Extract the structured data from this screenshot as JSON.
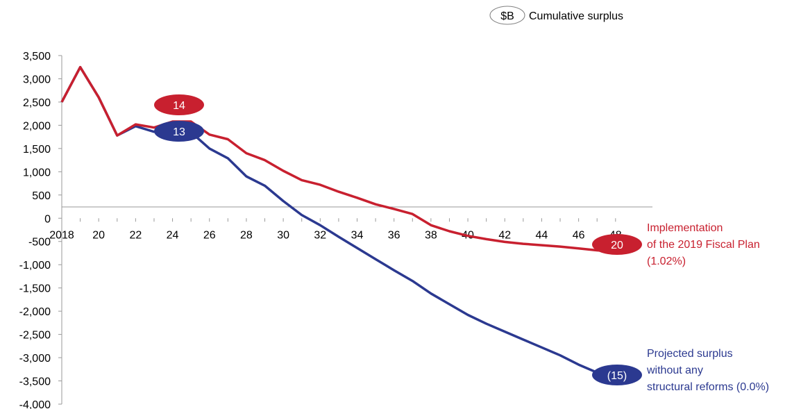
{
  "chart_data": {
    "type": "line",
    "unit_badge": "$B",
    "legend_note": "Cumulative surplus",
    "x": [
      2018,
      2019,
      2020,
      2021,
      2022,
      2023,
      2024,
      2025,
      2026,
      2027,
      2028,
      2029,
      2030,
      2031,
      2032,
      2033,
      2034,
      2035,
      2036,
      2037,
      2038,
      2039,
      2040,
      2041,
      2042,
      2043,
      2044,
      2045,
      2046,
      2047,
      2048
    ],
    "x_ticks": [
      2018,
      2020,
      2022,
      2024,
      2026,
      2028,
      2030,
      2032,
      2034,
      2036,
      2038,
      2040,
      2042,
      2044,
      2046,
      2048
    ],
    "x_tick_labels": [
      "2018",
      "20",
      "22",
      "24",
      "26",
      "28",
      "30",
      "32",
      "34",
      "36",
      "38",
      "40",
      "42",
      "44",
      "46",
      "48"
    ],
    "xlim": [
      2018,
      2050
    ],
    "ylim": [
      -4000,
      3500
    ],
    "y_ticks": [
      3500,
      3000,
      2500,
      2000,
      1500,
      1000,
      500,
      0,
      -500,
      -1000,
      -1500,
      -2000,
      -2500,
      -3000,
      -3500,
      -4000
    ],
    "y_tick_labels": [
      "3,500",
      "3,000",
      "2,500",
      "2,000",
      "1,500",
      "1,000",
      "500",
      "0",
      "-500",
      "-1,000",
      "-1,500",
      "-2,000",
      "-2,500",
      "-3,000",
      "-3,500",
      "-4,000"
    ],
    "grid": false,
    "series": [
      {
        "color": "#C8202F",
        "values": [
          2500,
          3250,
          2600,
          1780,
          2020,
          1950,
          2080,
          2080,
          1800,
          1700,
          1400,
          1250,
          1020,
          820,
          720,
          570,
          440,
          300,
          200,
          90,
          -150,
          -280,
          -380,
          -450,
          -510,
          -550,
          -580,
          -610,
          -650,
          -690,
          -720
        ],
        "label_lines": [
          "Implementation",
          " of the 2019 Fiscal Plan",
          "(1.02%)"
        ],
        "end_badge": "20",
        "mid_badge": "14"
      },
      {
        "color": "#2B3990",
        "values": [
          2500,
          3250,
          2600,
          1780,
          1980,
          1860,
          1970,
          1850,
          1500,
          1290,
          900,
          700,
          370,
          70,
          -150,
          -400,
          -640,
          -880,
          -1120,
          -1350,
          -1620,
          -1850,
          -2080,
          -2270,
          -2440,
          -2610,
          -2780,
          -2950,
          -3150,
          -3320,
          -3380
        ],
        "label_lines": [
          "Projected surplus",
          "without any",
          "structural reforms (0.0%)"
        ],
        "end_badge": "(15)",
        "mid_badge": "13"
      }
    ]
  }
}
